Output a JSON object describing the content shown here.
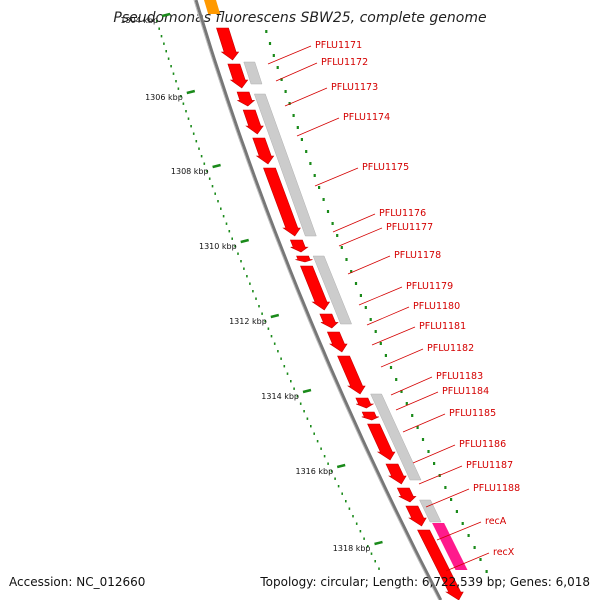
{
  "title": "Pseudomonas fluorescens SBW25, complete genome",
  "accession": "Accession: NC_012660",
  "summary": "Topology: circular; Length: 6,722,539 bp; Genes: 6,018",
  "colors": {
    "gene": "#ff0000",
    "gene_outline": "#c80000",
    "rna_block": "#cccccc",
    "highlight_gene": "#ff1a8c",
    "backbone": "#777777",
    "tick_dots": "#1a8a1a",
    "orange_feature": "#ff9900",
    "label": "#d40000"
  },
  "position_markers": [
    {
      "label": "1304 kbp"
    },
    {
      "label": "1306 kbp"
    },
    {
      "label": "1308 kbp"
    },
    {
      "label": "1310 kbp"
    },
    {
      "label": "1312 kbp"
    },
    {
      "label": "1314 kbp"
    },
    {
      "label": "1316 kbp"
    },
    {
      "label": "1318 kbp"
    }
  ],
  "genes": [
    {
      "name": "PFLU1171"
    },
    {
      "name": "PFLU1172"
    },
    {
      "name": "PFLU1173"
    },
    {
      "name": "PFLU1174"
    },
    {
      "name": "PFLU1175"
    },
    {
      "name": "PFLU1176"
    },
    {
      "name": "PFLU1177"
    },
    {
      "name": "PFLU1178"
    },
    {
      "name": "PFLU1179"
    },
    {
      "name": "PFLU1180"
    },
    {
      "name": "PFLU1181"
    },
    {
      "name": "PFLU1182"
    },
    {
      "name": "PFLU1183"
    },
    {
      "name": "PFLU1184"
    },
    {
      "name": "PFLU1185"
    },
    {
      "name": "PFLU1186"
    },
    {
      "name": "PFLU1187"
    },
    {
      "name": "PFLU1188"
    },
    {
      "name": "recA"
    },
    {
      "name": "recX"
    }
  ]
}
